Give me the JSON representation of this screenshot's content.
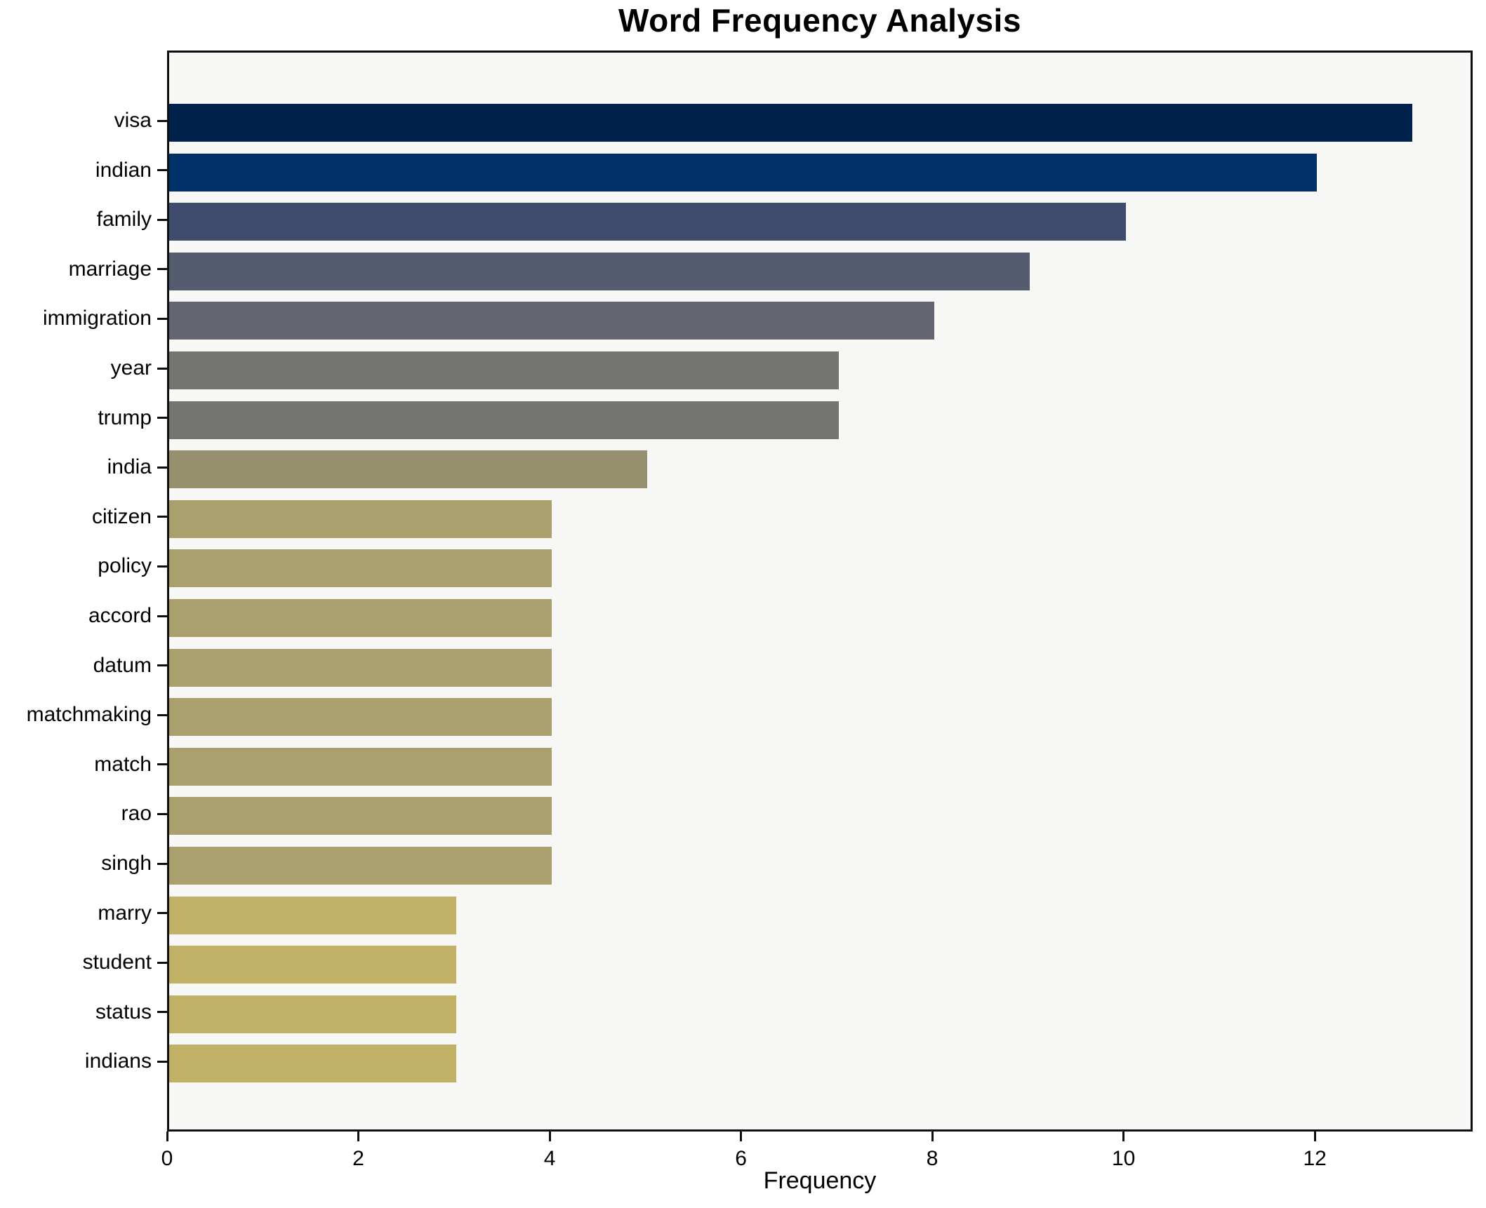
{
  "chart_data": {
    "type": "bar",
    "orientation": "horizontal",
    "title": "Word Frequency Analysis",
    "xlabel": "Frequency",
    "ylabel": "",
    "categories": [
      "visa",
      "indian",
      "family",
      "marriage",
      "immigration",
      "year",
      "trump",
      "india",
      "citizen",
      "policy",
      "accord",
      "datum",
      "matchmaking",
      "match",
      "rao",
      "singh",
      "marry",
      "student",
      "status",
      "indians"
    ],
    "values": [
      13,
      12,
      10,
      9,
      8,
      7,
      7,
      5,
      4,
      4,
      4,
      4,
      4,
      4,
      4,
      4,
      3,
      3,
      3,
      3
    ],
    "bar_colors": [
      "#00224d",
      "#003269",
      "#3f4c6d",
      "#555c70",
      "#646570",
      "#747473",
      "#747473",
      "#96906f",
      "#a9a06e",
      "#a9a06e",
      "#a9a06e",
      "#a9a06e",
      "#a9a06e",
      "#a9a06e",
      "#a9a06e",
      "#a9a06e",
      "#c0b167",
      "#c0b167",
      "#c0b167",
      "#c0b167"
    ],
    "x_ticks": [
      0,
      2,
      4,
      6,
      8,
      10,
      12
    ],
    "xlim": [
      0,
      13.65
    ],
    "grid": false,
    "legend": "none",
    "colors": {
      "plot_bg": "#f7f7f6",
      "figure_bg": "#ffffff",
      "spine": "#0f0f0f",
      "text": "#000000"
    }
  }
}
